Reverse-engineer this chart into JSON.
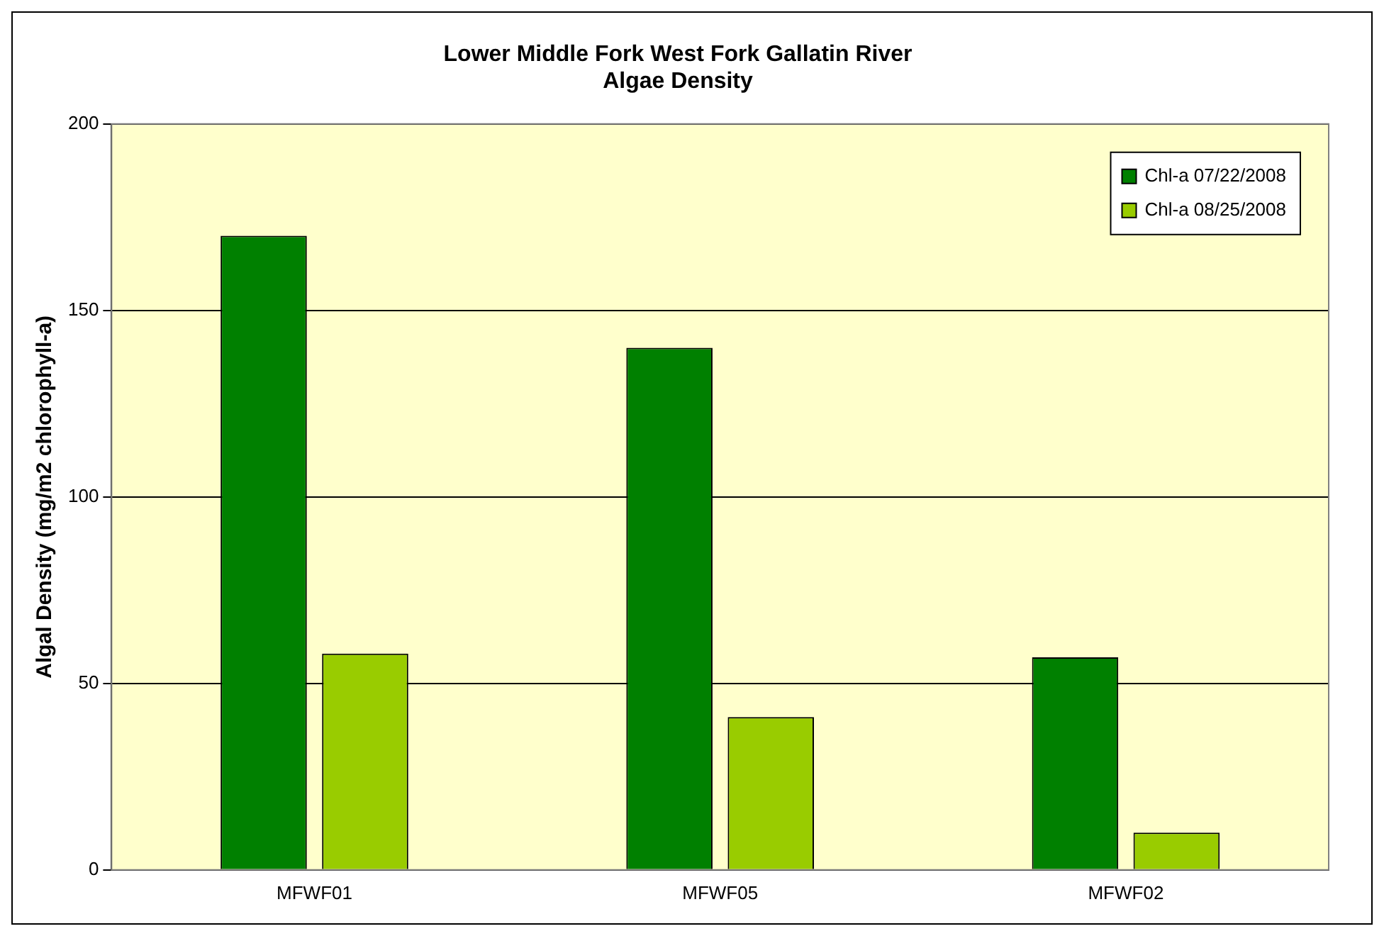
{
  "chart_data": {
    "type": "bar",
    "title": "Lower Middle Fork West Fork Gallatin River\nAlgae Density",
    "ylabel": "Algal Density (mg/m2 chlorophyll-a)",
    "categories": [
      "MFWF01",
      "MFWF05",
      "MFWF02"
    ],
    "series": [
      {
        "name": "Chl-a 07/22/2008",
        "color": "#008000",
        "values": [
          170,
          140,
          57
        ]
      },
      {
        "name": "Chl-a 08/25/2008",
        "color": "#99cc00",
        "values": [
          58,
          41,
          10
        ]
      }
    ],
    "ylim": [
      0,
      200
    ],
    "yticks": [
      0,
      50,
      100,
      150,
      200
    ],
    "grid": "y",
    "legend": "top right"
  }
}
